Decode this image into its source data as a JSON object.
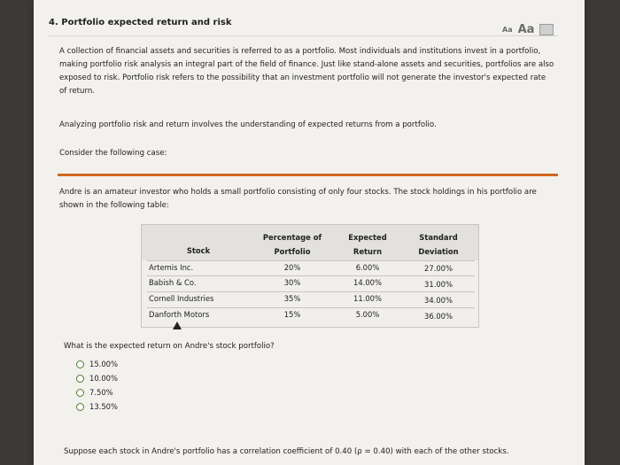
{
  "title": "4. Portfolio expected return and risk",
  "font_controls": {
    "small": "Aa",
    "large": "Aa"
  },
  "intro": "A collection of financial assets and securities is referred to as a portfolio. Most individuals and institutions invest in a portfolio, making portfolio risk analysis an integral part of the field of finance. Just like stand-alone assets and securities, portfolios are also exposed to risk. Portfolio risk refers to the possibility that an investment portfolio will not generate the investor's expected rate of return.",
  "analyze": "Analyzing portfolio risk and return involves the understanding of expected returns from a portfolio.",
  "consider": "Consider the following case:",
  "case": "Andre is an amateur investor who holds a small portfolio consisting of only four stocks. The stock holdings in his portfolio are shown in the following table:",
  "table": {
    "headers": {
      "stock": "Stock",
      "pct1": "Percentage of",
      "pct2": "Portfolio",
      "exp1": "Expected",
      "exp2": "Return",
      "sd1": "Standard",
      "sd2": "Deviation"
    },
    "rows": [
      {
        "stock": "Artemis Inc.",
        "pct": "20%",
        "ret": "6.00%",
        "sd": "27.00%"
      },
      {
        "stock": "Babish & Co.",
        "pct": "30%",
        "ret": "14.00%",
        "sd": "31.00%"
      },
      {
        "stock": "Cornell Industries",
        "pct": "35%",
        "ret": "11.00%",
        "sd": "34.00%"
      },
      {
        "stock": "Danforth Motors",
        "pct": "15%",
        "ret": "5.00%",
        "sd": "36.00%"
      }
    ]
  },
  "question": "What is the expected return on Andre's stock portfolio?",
  "options": [
    "15.00%",
    "10.00%",
    "7.50%",
    "13.50%"
  ],
  "bottom": "Suppose each stock in Andre's portfolio has a correlation coefficient of 0.40 (ρ = 0.40) with each of the other stocks."
}
